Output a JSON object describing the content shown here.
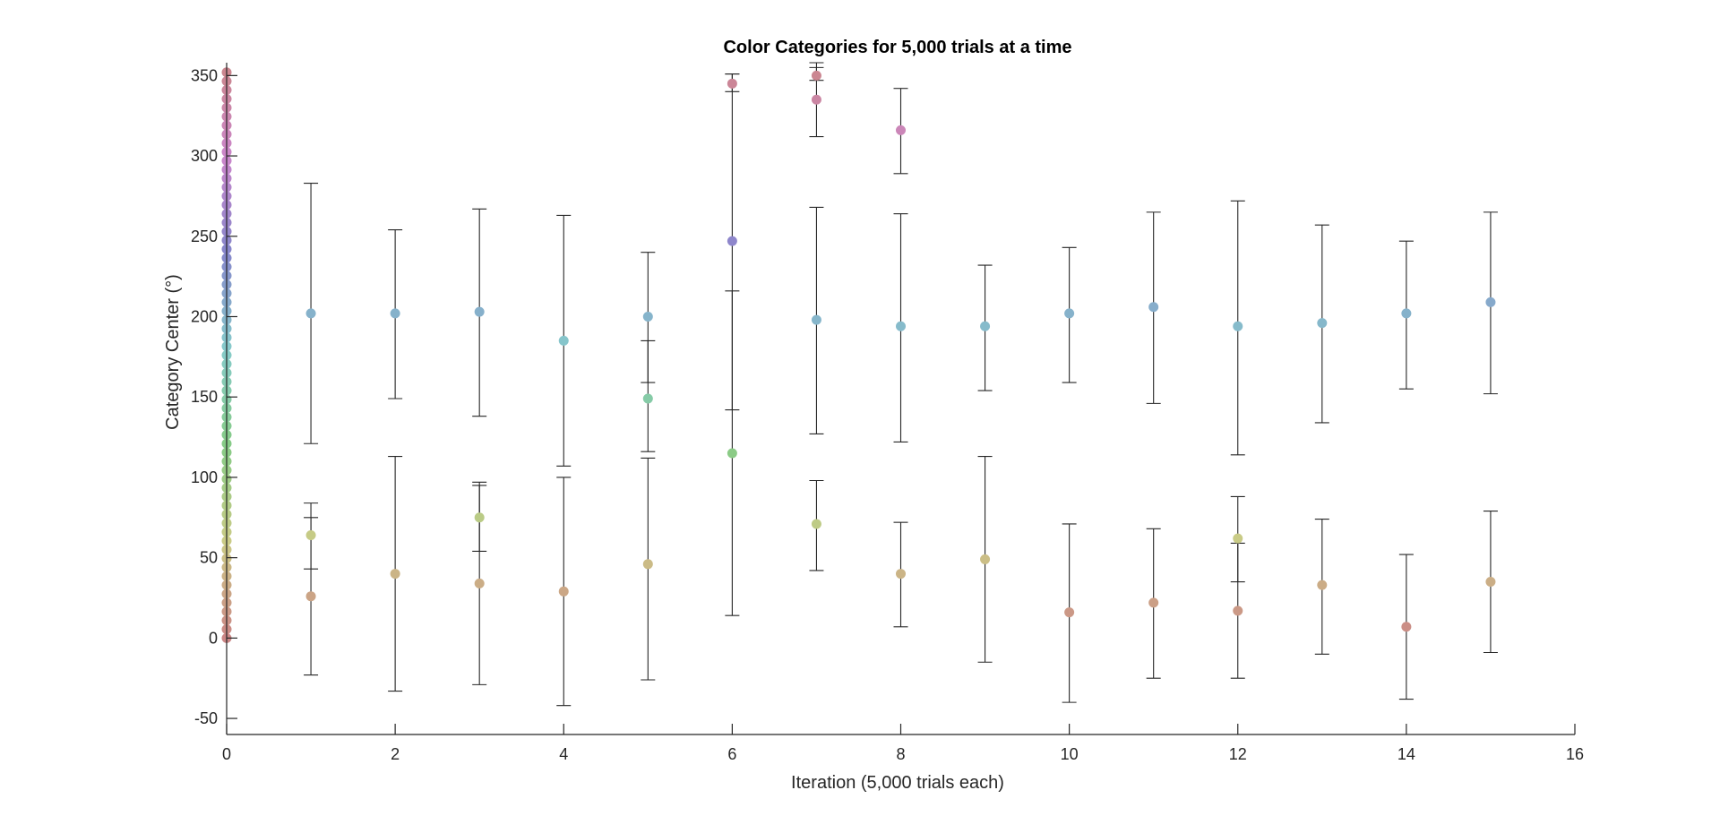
{
  "chart_data": {
    "type": "scatter",
    "title": "Color Categories for 5,000 trials at a time",
    "xlabel": "Iteration (5,000 trials each)",
    "ylabel": "Category Center (°)",
    "xlim": [
      0,
      16
    ],
    "ylim": [
      -60,
      358
    ],
    "xticks": [
      0,
      2,
      4,
      6,
      8,
      10,
      12,
      14,
      16
    ],
    "yticks": [
      -50,
      0,
      50,
      100,
      150,
      200,
      250,
      300,
      350
    ],
    "grid": false,
    "legend": "none",
    "initial_column": {
      "x": 0,
      "y_start": 0,
      "y_step": 5.5,
      "y_end": 355
    },
    "series": [
      {
        "points": [
          {
            "x": 1,
            "y": 202,
            "lo": 121,
            "hi": 283
          },
          {
            "x": 1,
            "y": 64,
            "lo": 43,
            "hi": 84
          },
          {
            "x": 1,
            "y": 26,
            "lo": -23,
            "hi": 75
          },
          {
            "x": 2,
            "y": 202,
            "lo": 149,
            "hi": 254
          },
          {
            "x": 2,
            "y": 40,
            "lo": -33,
            "hi": 113
          },
          {
            "x": 3,
            "y": 203,
            "lo": 138,
            "hi": 267
          },
          {
            "x": 3,
            "y": 75,
            "lo": 54,
            "hi": 97
          },
          {
            "x": 3,
            "y": 34,
            "lo": -29,
            "hi": 95
          },
          {
            "x": 4,
            "y": 185,
            "lo": 107,
            "hi": 263
          },
          {
            "x": 4,
            "y": 29,
            "lo": -42,
            "hi": 100
          },
          {
            "x": 5,
            "y": 200,
            "lo": 159,
            "hi": 240
          },
          {
            "x": 5,
            "y": 149,
            "lo": 116,
            "hi": 185
          },
          {
            "x": 5,
            "y": 46,
            "lo": -26,
            "hi": 112
          },
          {
            "x": 6,
            "y": 345,
            "lo": 340,
            "hi": 351
          },
          {
            "x": 6,
            "y": 247,
            "lo": 142,
            "hi": 351
          },
          {
            "x": 6,
            "y": 115,
            "lo": 14,
            "hi": 216
          },
          {
            "x": 7,
            "y": 350,
            "lo": 347,
            "hi": 355
          },
          {
            "x": 7,
            "y": 335,
            "lo": 312,
            "hi": 358
          },
          {
            "x": 7,
            "y": 198,
            "lo": 127,
            "hi": 268
          },
          {
            "x": 7,
            "y": 71,
            "lo": 42,
            "hi": 98
          },
          {
            "x": 8,
            "y": 316,
            "lo": 289,
            "hi": 342
          },
          {
            "x": 8,
            "y": 194,
            "lo": 122,
            "hi": 264
          },
          {
            "x": 8,
            "y": 40,
            "lo": 7,
            "hi": 72
          },
          {
            "x": 9,
            "y": 194,
            "lo": 154,
            "hi": 232
          },
          {
            "x": 9,
            "y": 49,
            "lo": -15,
            "hi": 113
          },
          {
            "x": 10,
            "y": 202,
            "lo": 159,
            "hi": 243
          },
          {
            "x": 10,
            "y": 16,
            "lo": -40,
            "hi": 71
          },
          {
            "x": 11,
            "y": 206,
            "lo": 146,
            "hi": 265
          },
          {
            "x": 11,
            "y": 22,
            "lo": -25,
            "hi": 68
          },
          {
            "x": 12,
            "y": 194,
            "lo": 114,
            "hi": 272
          },
          {
            "x": 12,
            "y": 62,
            "lo": 35,
            "hi": 88
          },
          {
            "x": 12,
            "y": 17,
            "lo": -25,
            "hi": 59
          },
          {
            "x": 13,
            "y": 196,
            "lo": 134,
            "hi": 257
          },
          {
            "x": 13,
            "y": 33,
            "lo": -10,
            "hi": 74
          },
          {
            "x": 14,
            "y": 202,
            "lo": 155,
            "hi": 247
          },
          {
            "x": 14,
            "y": 7,
            "lo": -38,
            "hi": 52
          },
          {
            "x": 15,
            "y": 209,
            "lo": 152,
            "hi": 265
          },
          {
            "x": 15,
            "y": 35,
            "lo": -9,
            "hi": 79
          }
        ]
      }
    ]
  }
}
